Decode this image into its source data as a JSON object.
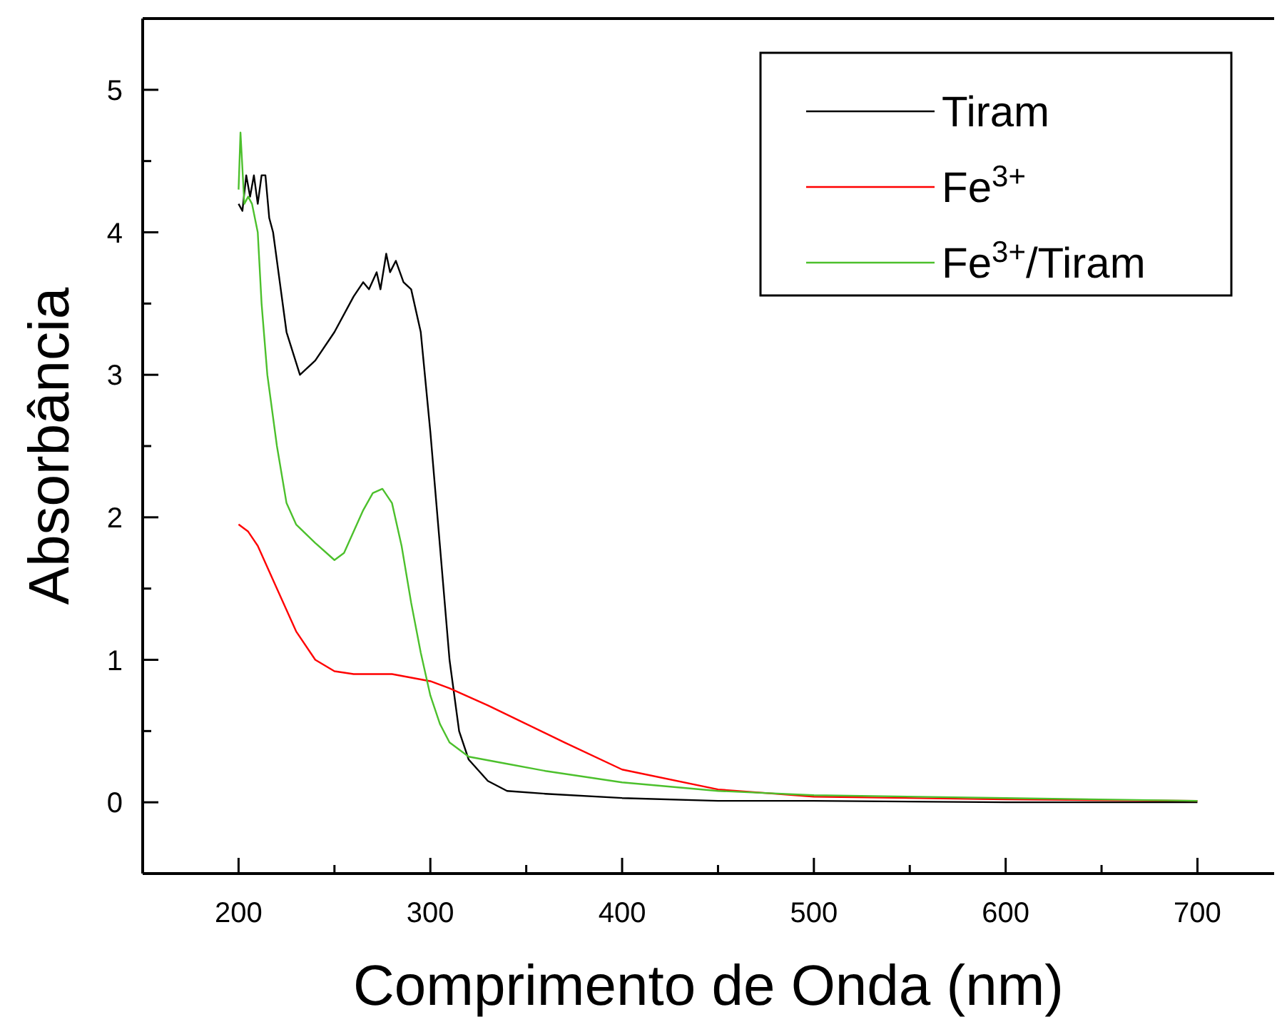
{
  "chart_data": {
    "type": "line",
    "xlabel": "Comprimento de Onda (nm)",
    "ylabel": "Absorbância",
    "xlim": [
      150,
      740
    ],
    "ylim": [
      -0.5,
      5.5
    ],
    "xticks": [
      200,
      {
        "value": 250,
        "label": null
      },
      300,
      {
        "value": 350,
        "label": null
      },
      400,
      {
        "value": 450,
        "label": null
      },
      500,
      {
        "value": 550,
        "label": null
      },
      600,
      {
        "value": 650,
        "label": null
      },
      700
    ],
    "yticks": [
      0,
      {
        "value": 0.5,
        "label": null
      },
      1,
      {
        "value": 1.5,
        "label": null
      },
      2,
      {
        "value": 2.5,
        "label": null
      },
      3,
      {
        "value": 3.5,
        "label": null
      },
      4,
      {
        "value": 4.5,
        "label": null
      },
      5
    ],
    "grid": false,
    "legend": "top right",
    "marker": "none",
    "line_style": "solid",
    "series": [
      {
        "name": "Tiram",
        "color": "#000000",
        "x": [
          200,
          202,
          204,
          206,
          208,
          210,
          212,
          214,
          216,
          218,
          220,
          225,
          232,
          240,
          250,
          260,
          265,
          268,
          272,
          274,
          277,
          279,
          282,
          286,
          290,
          295,
          300,
          305,
          310,
          315,
          320,
          330,
          340,
          360,
          400,
          450,
          500,
          600,
          700
        ],
        "values": [
          4.2,
          4.15,
          4.4,
          4.25,
          4.4,
          4.2,
          4.4,
          4.4,
          4.1,
          4.0,
          3.8,
          3.3,
          3.0,
          3.1,
          3.3,
          3.55,
          3.65,
          3.6,
          3.72,
          3.6,
          3.85,
          3.72,
          3.8,
          3.65,
          3.6,
          3.3,
          2.6,
          1.8,
          1.0,
          0.5,
          0.3,
          0.15,
          0.08,
          0.06,
          0.03,
          0.01,
          0.01,
          0.0,
          0.0
        ]
      },
      {
        "name": "Fe$^{3+}$",
        "color": "#ff0000",
        "x": [
          200,
          205,
          210,
          220,
          230,
          240,
          250,
          260,
          280,
          300,
          310,
          330,
          350,
          370,
          400,
          450,
          500,
          600,
          700
        ],
        "values": [
          1.95,
          1.9,
          1.8,
          1.5,
          1.2,
          1.0,
          0.92,
          0.9,
          0.9,
          0.85,
          0.8,
          0.68,
          0.55,
          0.42,
          0.23,
          0.09,
          0.04,
          0.02,
          0.01
        ]
      },
      {
        "name": "Fe$^{3+}$/Tiram",
        "color": "#4cc02c",
        "x": [
          200,
          201,
          203,
          205,
          207,
          210,
          212,
          215,
          220,
          225,
          230,
          240,
          250,
          255,
          260,
          265,
          270,
          275,
          280,
          285,
          290,
          295,
          300,
          305,
          310,
          320,
          340,
          360,
          400,
          450,
          500,
          600,
          700
        ],
        "values": [
          4.3,
          4.7,
          4.2,
          4.25,
          4.2,
          4.0,
          3.5,
          3.0,
          2.5,
          2.1,
          1.95,
          1.82,
          1.7,
          1.75,
          1.9,
          2.05,
          2.17,
          2.2,
          2.1,
          1.8,
          1.4,
          1.05,
          0.75,
          0.55,
          0.42,
          0.32,
          0.27,
          0.22,
          0.14,
          0.08,
          0.05,
          0.03,
          0.01
        ]
      }
    ]
  }
}
